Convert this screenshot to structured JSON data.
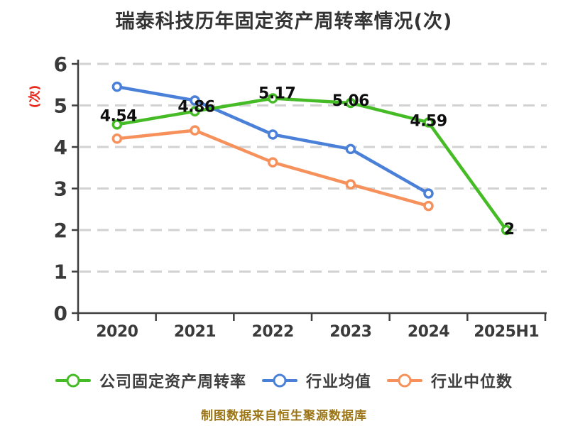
{
  "title": "瑞泰科技历年固定资产周转率情况(次)",
  "y_axis_unit": "(次)",
  "footer_note": "制图数据来自恒生聚源数据库",
  "colors": {
    "title": "#333333",
    "axis": "#3f3f3f",
    "grid": "#d2d2d2",
    "tick_label": "#3a3a3a",
    "data_label": "#0e0e0e",
    "y_unit_label": "#e8261b",
    "footer": "#9b7416"
  },
  "chart_data": {
    "type": "line",
    "title": "瑞泰科技历年固定资产周转率情况(次)",
    "categories": [
      "2020",
      "2021",
      "2022",
      "2023",
      "2024",
      "2025H1"
    ],
    "y_ticks": [
      0,
      1,
      2,
      3,
      4,
      5,
      6
    ],
    "ylim": [
      0,
      6
    ],
    "grid": "horizontal-dashed",
    "legend_position": "bottom",
    "series": [
      {
        "name": "公司固定资产周转率",
        "color": "#45bc25",
        "values": [
          4.54,
          4.86,
          5.17,
          5.06,
          4.59,
          2
        ],
        "labels": [
          "4.54",
          "4.86",
          "5.17",
          "5.06",
          "4.59",
          "2"
        ]
      },
      {
        "name": "行业均值",
        "color": "#4a80d8",
        "values": [
          5.45,
          5.12,
          4.3,
          3.95,
          2.88,
          null
        ],
        "labels": null
      },
      {
        "name": "行业中位数",
        "color": "#f6915c",
        "values": [
          4.2,
          4.4,
          3.63,
          3.1,
          2.58,
          null
        ],
        "labels": null
      }
    ]
  }
}
